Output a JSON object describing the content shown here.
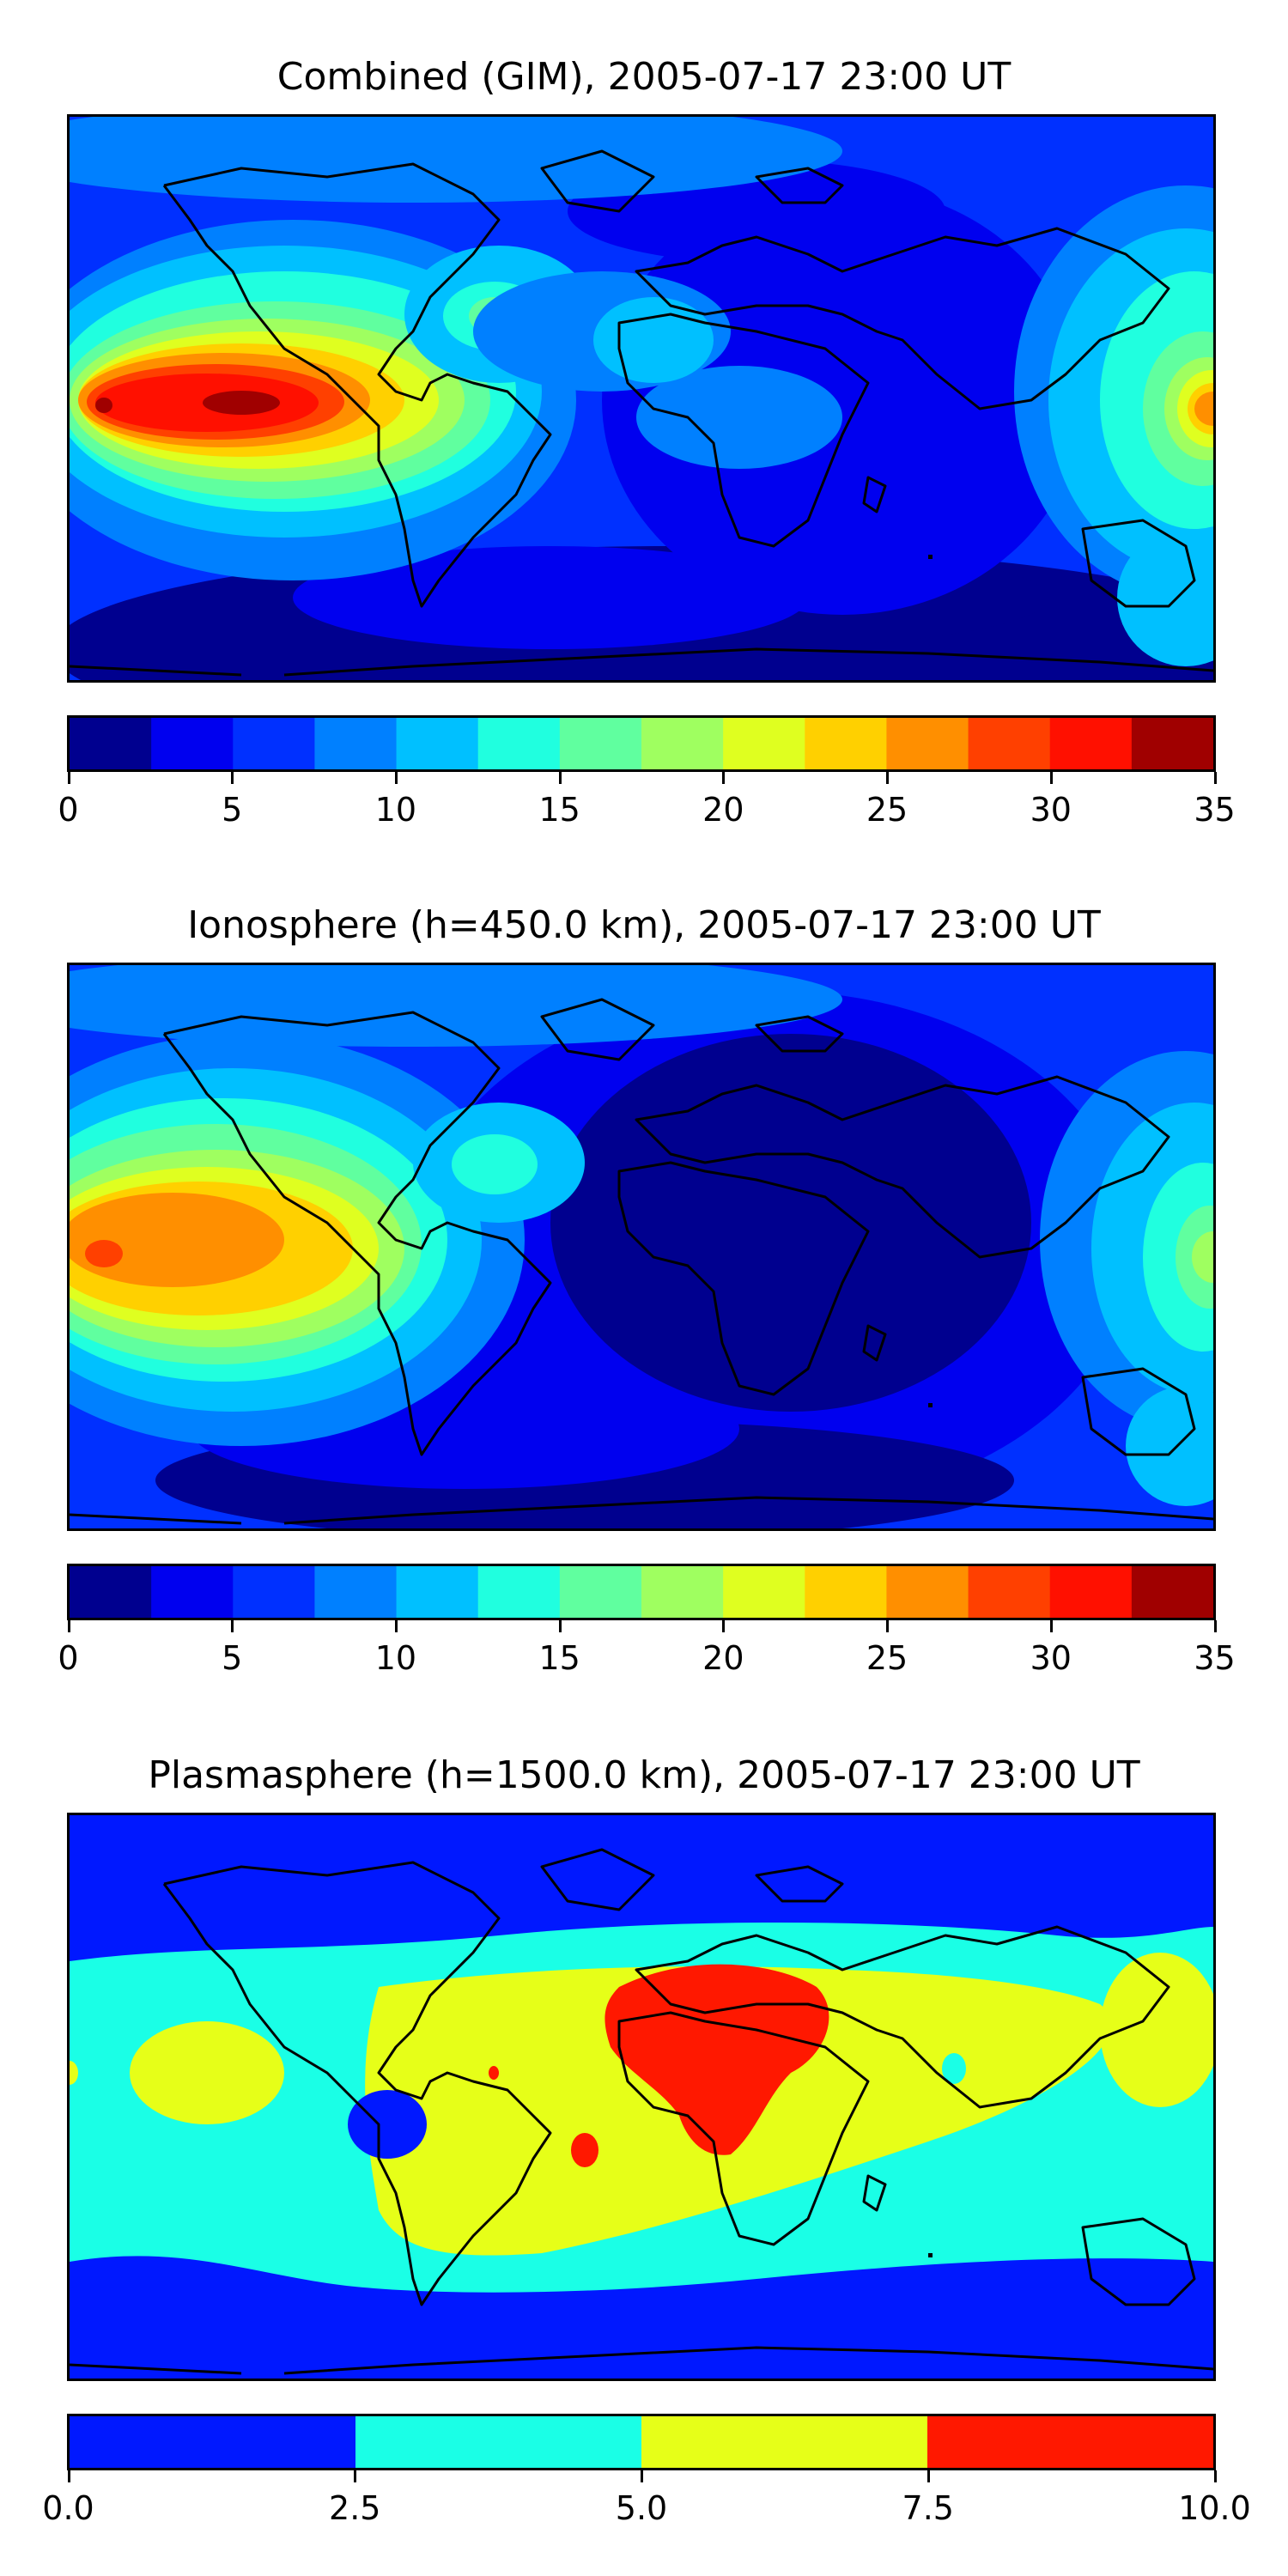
{
  "panels": [
    {
      "id": "combined",
      "title": "Combined (GIM), 2005-07-17 23:00 UT",
      "colorbar": {
        "colors": [
          "#00008f",
          "#0000ef",
          "#0030ff",
          "#0080ff",
          "#00c0ff",
          "#20ffdf",
          "#60ff9f",
          "#9fff60",
          "#dfff20",
          "#ffd000",
          "#ff8f00",
          "#ff4000",
          "#ff1000",
          "#a00000"
        ],
        "ticks": [
          "0",
          "5",
          "10",
          "15",
          "20",
          "25",
          "30",
          "35"
        ],
        "range": [
          0,
          35
        ]
      }
    },
    {
      "id": "ionosphere",
      "title": "Ionosphere  (h=450.0 km), 2005-07-17 23:00 UT",
      "colorbar": {
        "colors": [
          "#00008f",
          "#0000ef",
          "#0030ff",
          "#0080ff",
          "#00c0ff",
          "#20ffdf",
          "#60ff9f",
          "#9fff60",
          "#dfff20",
          "#ffd000",
          "#ff8f00",
          "#ff4000",
          "#ff1000",
          "#a00000"
        ],
        "ticks": [
          "0",
          "5",
          "10",
          "15",
          "20",
          "25",
          "30",
          "35"
        ],
        "range": [
          0,
          35
        ]
      }
    },
    {
      "id": "plasmasphere",
      "title": "Plasmasphere (h=1500.0 km), 2005-07-17 23:00 UT",
      "colorbar": {
        "colors": [
          "#0018ff",
          "#1affe6",
          "#e6ff18",
          "#ff1800"
        ],
        "ticks": [
          "0.0",
          "2.5",
          "5.0",
          "7.5",
          "10.0"
        ],
        "range": [
          0,
          10
        ]
      }
    }
  ]
}
